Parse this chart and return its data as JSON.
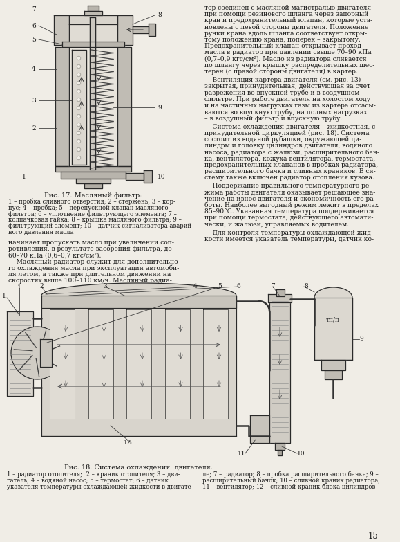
{
  "page_bg": "#f0ede6",
  "text_color": "#1a1a1a",
  "fig17_caption": "Рис. 17. Масляный фильтр:",
  "fig18_caption": "Рис. 18. Система охлаждения  двигателя.",
  "right_text_top": "тор соединен с масляной магистралью двигателя\nпри помощи резинового шланга через запорный\nкран и предохранительный клапан, которые уста-\nновлены с левой стороны двигателя. Положение\nручки крана вдоль шланга соответствует откры-\nтому положению крана, поперек – закрытому.\nПредохранительный клапан открывает проход\nмасла в радиатор при давлении свыше 70–90 кПа\n(0,7–0,9 кгс/см²). Масло из радиатора сливается\nпо шлангу через крышку распределительных шес-\nтерен (с правой стороны двигателя) в картер.",
  "right_text_vent": "    Вентиляция картера двигателя (см. рис. 13) –\nзакрытая, принудительная, действующая за счет\nразрежения во впускной трубе и в воздушном\nфильтре. При работе двигателя на холостом ходу\nи на частичных нагрузках газы из картера отсасы-\nваются во впускную трубу, на полных нагрузках\n– в воздушный фильтр и впускную трубу.",
  "right_text_sys": "    Система охлаждения двигателя – жидкостная, с\nпринудительной циркуляцией (рис. 18). Система\nсостоит из водяной рубашки, окружающей ци-\nлиндры и головку цилиндров двигателя, водяного\nнасоса, радиатора с жалюзи, расширительного бач-\nка, вентилятора, кожуха вентилятора, термостата,\nпредохранительных клапанов в пробках радиатора,\nрасширительного бачка и сливных краников. В си-\nстему также включен радиатор отопления кузова.",
  "right_text_temp": "    Поддержание правильного температурного ре-\nжима работы двигателя оказывает решающее зна-\nчение на износ двигателя и экономичность его ра-\nботы. Наиболее выгодный режим лежит в пределах\n85–90°С. Указанная температура поддерживается\nпри помощи термостата, действующего автомати-\nчески, и жалюзи, управляемых водителем.",
  "right_text_control": "    Для контроля температуры охлаждающей жид-\nкости имеется указатель температуры, датчик ко-",
  "left_text_mid": "начинает пропускать масло при увеличении соп-\nротивления, в результате засорения фильтра, до\n60–70 кПа (0,6–0,7 кгс/см²).\n    Масляный радиатор служит для дополнительно-\nго охлаждения масла при эксплуатации автомоби-\nля летом, а также при длительном движении на\nскоростях выше 100–110 км/ч. Масляный радиа-",
  "leg17_lines": [
    "1 – пробка сливного отверстия; 2 – стержень; 3 – кор-",
    "пус; 4 – пробка; 5 – перепускной клапан масляного",
    "фильтра; 6 – уплотнение фильтрующего элемента; 7 –",
    "колпачковая гайка; 8 – крышка масляного фильтра; 9 –",
    "фильтрующий элемент; 10 – датчик сигнализатора аварий-",
    "ного давления масла"
  ],
  "leg18_left": [
    "1 – радиатор отопителя;  2 – краник отопителя; 3 – дви-",
    "гатель; 4 – водяной насос; 5 – термостат; 6 – датчик",
    "указателя температуры охлаждающей жидкости в двигате-"
  ],
  "leg18_right": [
    "ле; 7 – радиатор; 8 – пробка расширительного бачка; 9 –",
    "расширительный бачок; 10 – сливной краник радиатора;",
    "11 – вентилятор; 12 – сливной краник блока цилиндров"
  ],
  "page_number": "15",
  "col_div": 289
}
